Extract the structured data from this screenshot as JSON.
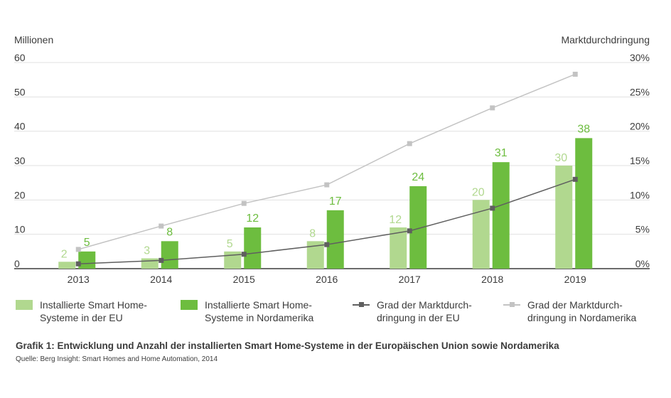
{
  "chart_data": {
    "type": "bar",
    "title": "Grafik 1: Entwicklung und Anzahl der installierten Smart Home-Systeme in der Europäischen Union sowie Nordamerika",
    "source": "Quelle: Berg Insight: Smart Homes and Home Automation, 2014",
    "ylabel_left": "Millionen",
    "ylabel_right": "Marktdurchdringung",
    "categories": [
      "2013",
      "2014",
      "2015",
      "2016",
      "2017",
      "2018",
      "2019"
    ],
    "ylim_left": [
      0,
      60
    ],
    "yticks_left": [
      "0",
      "10",
      "20",
      "30",
      "40",
      "50",
      "60"
    ],
    "ylim_right": [
      0,
      30
    ],
    "yticks_right": [
      "0%",
      "5%",
      "10%",
      "15%",
      "20%",
      "25%",
      "30%"
    ],
    "grid": true,
    "series": [
      {
        "name": "Installierte Smart Home-\nSysteme in der EU",
        "type": "bar",
        "axis": "left",
        "color": "#b1d88f",
        "values": [
          2,
          3,
          5,
          8,
          12,
          20,
          30
        ]
      },
      {
        "name": "Installierte Smart Home-\nSysteme in Nordamerika",
        "type": "bar",
        "axis": "left",
        "color": "#6dbd3f",
        "values": [
          5,
          8,
          12,
          17,
          24,
          31,
          38
        ]
      },
      {
        "name": "Grad der Marktdurch-\ndringung in der EU",
        "type": "line",
        "axis": "right",
        "color": "#5f5f5f",
        "values": [
          0.7,
          1.2,
          2.1,
          3.5,
          5.5,
          8.8,
          13.0
        ]
      },
      {
        "name": "Grad der Marktdurch-\ndringung in Nordamerika",
        "type": "line",
        "axis": "right",
        "color": "#c3c3c3",
        "values": [
          2.8,
          6.2,
          9.5,
          12.2,
          18.2,
          23.4,
          28.3
        ]
      }
    ]
  },
  "colors": {
    "grid": "#e1e1e1",
    "axis": "#3c3c3c",
    "text": "#3c3c3c"
  }
}
